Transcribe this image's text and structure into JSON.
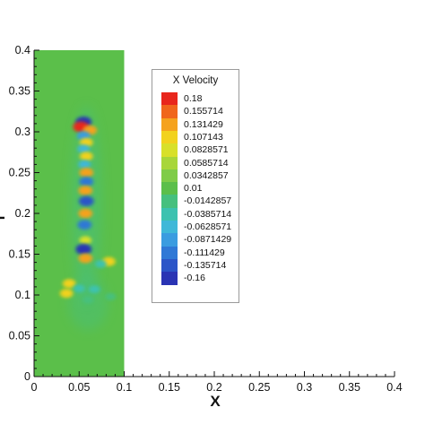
{
  "chart_data": {
    "type": "heatmap",
    "title": "",
    "xlabel": "X",
    "ylabel": "Y",
    "xlim": [
      0,
      0.4
    ],
    "ylim": [
      0,
      0.4
    ],
    "x_ticks": [
      "0",
      "0.05",
      "0.1",
      "0.15",
      "0.2",
      "0.25",
      "0.3",
      "0.35",
      "0.4"
    ],
    "y_ticks": [
      "0",
      "0.05",
      "0.1",
      "0.15",
      "0.2",
      "0.25",
      "0.3",
      "0.35",
      "0.4"
    ],
    "x_tick_values": [
      0,
      0.05,
      0.1,
      0.15,
      0.2,
      0.25,
      0.3,
      0.35,
      0.4
    ],
    "y_tick_values": [
      0,
      0.05,
      0.1,
      0.15,
      0.2,
      0.25,
      0.3,
      0.35,
      0.4
    ],
    "domain_x": [
      0,
      0.1
    ],
    "domain_y": [
      0,
      0.4
    ],
    "background_value": 0.01,
    "legend": {
      "title": "X Velocity",
      "placement": "upper-middle",
      "levels": [
        "0.18",
        "0.155714",
        "0.131429",
        "0.107143",
        "0.0828571",
        "0.0585714",
        "0.0342857",
        "0.01",
        "-0.0142857",
        "-0.0385714",
        "-0.0628571",
        "-0.0871429",
        "-0.111429",
        "-0.135714",
        "-0.16"
      ],
      "colors": [
        "#e8261c",
        "#f0661c",
        "#f5a21e",
        "#f2d21e",
        "#d8e02a",
        "#a8d63a",
        "#7fcc48",
        "#5bbf4a",
        "#46c07e",
        "#3cc2b0",
        "#3fb8d8",
        "#3a9ce0",
        "#2f78d6",
        "#2b55c8",
        "#2a34b4"
      ]
    },
    "features": [
      {
        "x": 0.055,
        "y": 0.312,
        "value": -0.16
      },
      {
        "x": 0.052,
        "y": 0.306,
        "value": 0.18
      },
      {
        "x": 0.062,
        "y": 0.302,
        "value": 0.131429
      },
      {
        "x": 0.055,
        "y": 0.295,
        "value": -0.0871429
      },
      {
        "x": 0.058,
        "y": 0.287,
        "value": 0.107143
      },
      {
        "x": 0.055,
        "y": 0.279,
        "value": -0.0628571
      },
      {
        "x": 0.058,
        "y": 0.27,
        "value": 0.107143
      },
      {
        "x": 0.056,
        "y": 0.26,
        "value": -0.0628571
      },
      {
        "x": 0.058,
        "y": 0.25,
        "value": 0.131429
      },
      {
        "x": 0.058,
        "y": 0.239,
        "value": -0.111429
      },
      {
        "x": 0.057,
        "y": 0.228,
        "value": 0.131429
      },
      {
        "x": 0.058,
        "y": 0.215,
        "value": -0.135714
      },
      {
        "x": 0.057,
        "y": 0.2,
        "value": 0.131429
      },
      {
        "x": 0.056,
        "y": 0.186,
        "value": -0.111429
      },
      {
        "x": 0.057,
        "y": 0.167,
        "value": 0.0828571
      },
      {
        "x": 0.055,
        "y": 0.156,
        "value": -0.16
      },
      {
        "x": 0.057,
        "y": 0.145,
        "value": 0.131429
      },
      {
        "x": 0.083,
        "y": 0.141,
        "value": 0.107143
      },
      {
        "x": 0.074,
        "y": 0.138,
        "value": -0.0385714
      },
      {
        "x": 0.039,
        "y": 0.114,
        "value": 0.107143
      },
      {
        "x": 0.05,
        "y": 0.108,
        "value": -0.0385714
      },
      {
        "x": 0.036,
        "y": 0.102,
        "value": 0.107143
      },
      {
        "x": 0.067,
        "y": 0.107,
        "value": -0.0385714
      },
      {
        "x": 0.06,
        "y": 0.094,
        "value": -0.0142857
      },
      {
        "x": 0.085,
        "y": 0.098,
        "value": -0.0142857
      }
    ]
  }
}
